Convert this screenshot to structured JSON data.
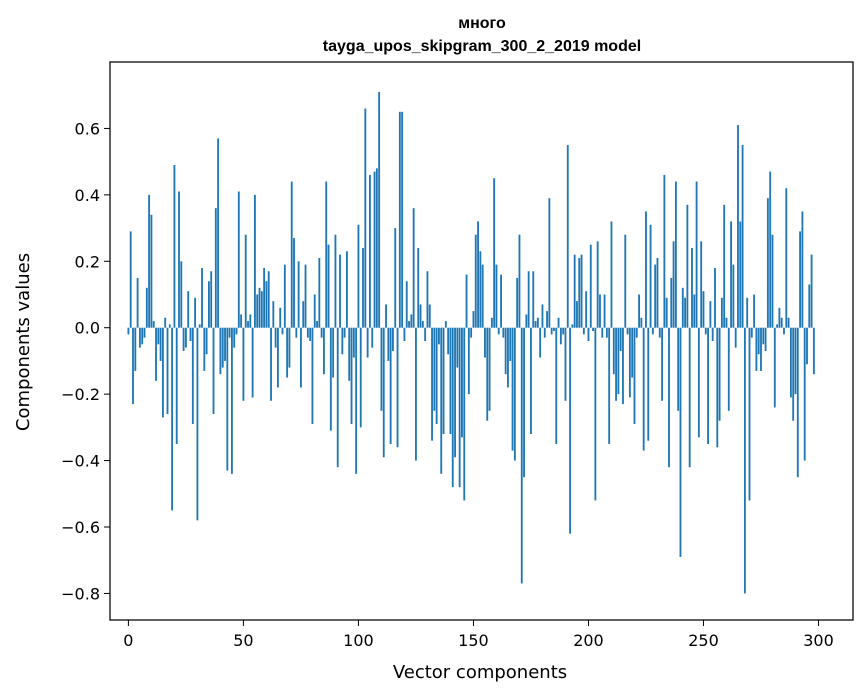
{
  "chart_data": {
    "type": "bar",
    "title": "много",
    "subtitle": "tayga_upos_skipgram_300_2_2019 model",
    "xlabel": "Vector components",
    "ylabel": "Components values",
    "xlim": [
      -8,
      315
    ],
    "ylim": [
      -0.88,
      0.8
    ],
    "xticks": [
      0,
      50,
      100,
      150,
      200,
      250,
      300
    ],
    "yticks": [
      -0.8,
      -0.6,
      -0.4,
      -0.2,
      0.0,
      0.2,
      0.4,
      0.6
    ],
    "ytick_labels": [
      "−0.8",
      "−0.6",
      "−0.4",
      "−0.2",
      "0.0",
      "0.2",
      "0.4",
      "0.6"
    ],
    "bar_color": "#1f77b4",
    "values": [
      -0.02,
      0.29,
      -0.23,
      -0.13,
      0.15,
      -0.06,
      -0.05,
      -0.03,
      0.12,
      0.4,
      0.34,
      0.02,
      -0.16,
      -0.05,
      -0.1,
      -0.27,
      0.03,
      -0.26,
      0.01,
      -0.55,
      0.49,
      -0.35,
      0.41,
      0.2,
      -0.07,
      -0.06,
      0.11,
      -0.04,
      -0.29,
      0.09,
      -0.58,
      0.01,
      0.18,
      -0.13,
      -0.08,
      0.14,
      0.17,
      -0.26,
      0.36,
      0.57,
      -0.14,
      -0.12,
      -0.1,
      -0.43,
      -0.03,
      -0.44,
      -0.06,
      -0.02,
      0.41,
      0.04,
      -0.22,
      0.28,
      0.02,
      0.04,
      -0.21,
      0.4,
      0.1,
      0.12,
      0.11,
      0.18,
      0.14,
      0.17,
      -0.22,
      0.08,
      -0.06,
      -0.18,
      0.06,
      -0.02,
      0.19,
      -0.15,
      -0.12,
      0.44,
      0.27,
      -0.03,
      0.2,
      -0.18,
      0.08,
      0.19,
      -0.03,
      -0.04,
      -0.29,
      0.1,
      0.02,
      0.21,
      -0.03,
      -0.14,
      0.44,
      0.25,
      -0.31,
      -0.15,
      0.28,
      -0.42,
      0.22,
      -0.08,
      -0.03,
      0.23,
      -0.16,
      -0.29,
      -0.09,
      -0.44,
      0.31,
      -0.3,
      0.24,
      0.66,
      -0.09,
      0.46,
      -0.06,
      0.47,
      0.48,
      0.71,
      -0.25,
      -0.39,
      0.07,
      -0.1,
      -0.35,
      -0.07,
      0.3,
      -0.36,
      0.65,
      0.65,
      -0.04,
      0.14,
      0.02,
      0.04,
      0.36,
      -0.4,
      0.24,
      0.07,
      0.02,
      -0.04,
      0.17,
      0.07,
      -0.34,
      -0.25,
      -0.29,
      -0.05,
      -0.44,
      -0.32,
      0.02,
      -0.08,
      -0.32,
      -0.48,
      -0.39,
      -0.12,
      -0.48,
      -0.33,
      -0.52,
      0.16,
      -0.2,
      -0.03,
      0.05,
      0.28,
      0.32,
      0.23,
      0.19,
      -0.09,
      -0.28,
      -0.25,
      0.03,
      0.45,
      0.19,
      -0.02,
      0.16,
      -0.03,
      -0.14,
      -0.18,
      -0.1,
      -0.37,
      -0.4,
      0.15,
      0.28,
      -0.77,
      -0.45,
      0.04,
      0.17,
      -0.32,
      0.17,
      0.02,
      0.03,
      -0.09,
      0.07,
      -0.03,
      0.05,
      0.39,
      -0.02,
      -0.01,
      -0.35,
      0.03,
      -0.05,
      -0.02,
      -0.22,
      0.55,
      -0.62,
      0.01,
      0.22,
      0.08,
      0.21,
      0.22,
      -0.02,
      0.11,
      -0.04,
      0.25,
      -0.01,
      -0.52,
      0.26,
      0.1,
      -0.03,
      0.1,
      -0.03,
      -0.35,
      0.32,
      -0.14,
      -0.22,
      -0.2,
      -0.07,
      -0.23,
      0.28,
      -0.02,
      -0.21,
      -0.15,
      -0.29,
      -0.03,
      0.1,
      0.03,
      -0.37,
      0.35,
      -0.34,
      0.31,
      -0.02,
      0.19,
      0.21,
      -0.03,
      -0.22,
      0.46,
      0.09,
      -0.42,
      0.15,
      0.26,
      0.44,
      -0.25,
      -0.69,
      0.12,
      0.09,
      0.37,
      -0.42,
      0.24,
      0.1,
      0.44,
      -0.33,
      0.26,
      0.11,
      -0.02,
      -0.35,
      0.08,
      -0.04,
      0.18,
      -0.36,
      -0.28,
      0.09,
      0.37,
      0.03,
      -0.25,
      0.32,
      0.19,
      -0.06,
      0.61,
      0.32,
      0.55,
      -0.8,
      0.09,
      -0.52,
      -0.03,
      0.1,
      -0.13,
      -0.08,
      -0.13,
      -0.05,
      -0.07,
      0.39,
      0.47,
      0.28,
      -0.24,
      0.01,
      0.06,
      0.03,
      -0.02,
      0.42,
      0.03,
      -0.21,
      -0.28,
      -0.2,
      -0.45,
      0.29,
      0.35,
      -0.4,
      -0.11,
      0.13,
      0.22,
      -0.14
    ]
  }
}
